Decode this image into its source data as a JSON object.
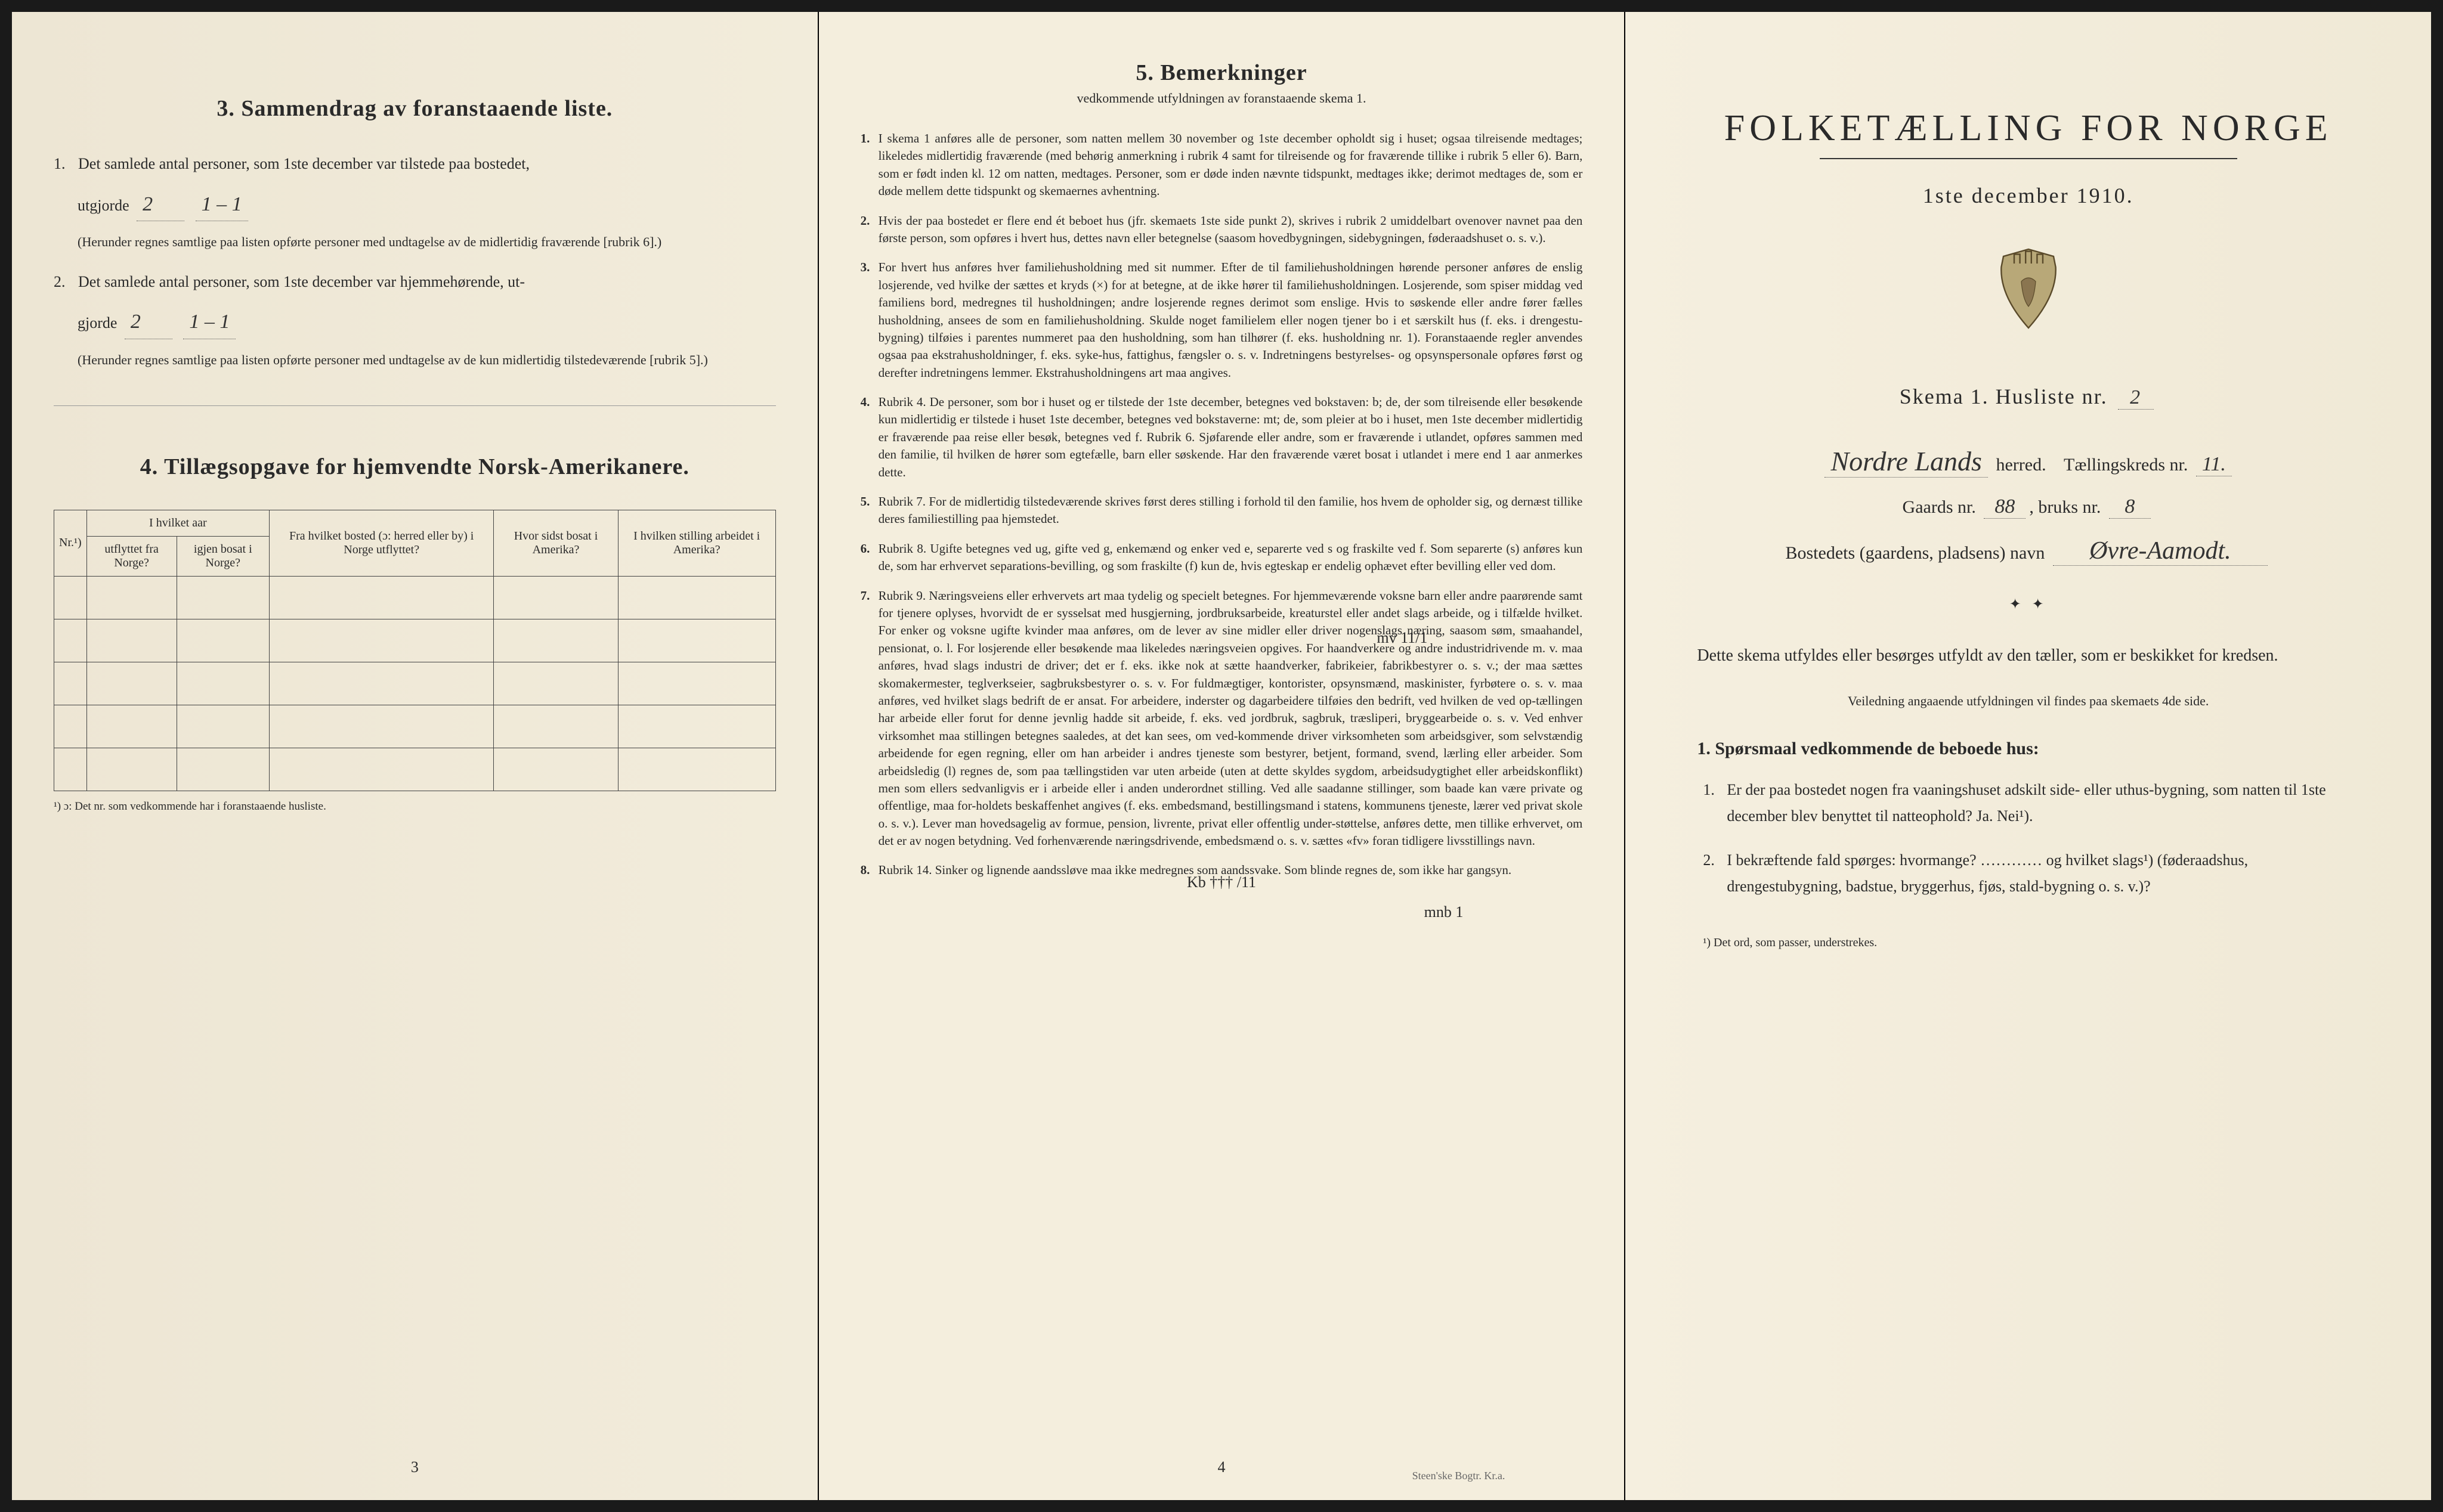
{
  "page1": {
    "section3_title": "3.  Sammendrag av foranstaaende liste.",
    "item1_text": "Det samlede antal personer, som 1ste december var tilstede paa bostedet,",
    "item1_label": "utgjorde",
    "item1_value1": "2",
    "item1_value2": "1 – 1",
    "item1_note": "(Herunder regnes samtlige paa listen opførte personer med undtagelse av de midlertidig fraværende [rubrik 6].)",
    "item2_text": "Det samlede antal personer, som 1ste december var hjemmehørende, ut-",
    "item2_label": "gjorde",
    "item2_value1": "2",
    "item2_value2": "1 – 1",
    "item2_note": "(Herunder regnes samtlige paa listen opførte personer med undtagelse av de kun midlertidig tilstedeværende [rubrik 5].)",
    "section4_title": "4.  Tillægsopgave for hjemvendte Norsk-Amerikanere.",
    "table": {
      "headers": {
        "nr": "Nr.¹)",
        "aar_group": "I hvilket aar",
        "utflyttet": "utflyttet fra Norge?",
        "igjen": "igjen bosat i Norge?",
        "fra_bosted": "Fra hvilket bosted (ɔ: herred eller by) i Norge utflyttet?",
        "hvor_sidst": "Hvor sidst bosat i Amerika?",
        "stilling": "I hvilken stilling arbeidet i Amerika?"
      },
      "note": "¹) ɔ: Det nr. som vedkommende har i foranstaaende husliste."
    },
    "page_number": "3"
  },
  "page2": {
    "title": "5.  Bemerkninger",
    "subtitle": "vedkommende utfyldningen av foranstaaende skema 1.",
    "remarks": [
      {
        "n": "1.",
        "t": "I skema 1 anføres alle de personer, som natten mellem 30 november og 1ste december opholdt sig i huset; ogsaa tilreisende medtages; likeledes midlertidig fraværende (med behørig anmerkning i rubrik 4 samt for tilreisende og for fraværende tillike i rubrik 5 eller 6). Barn, som er født inden kl. 12 om natten, medtages. Personer, som er døde inden nævnte tidspunkt, medtages ikke; derimot medtages de, som er døde mellem dette tidspunkt og skemaernes avhentning."
      },
      {
        "n": "2.",
        "t": "Hvis der paa bostedet er flere end ét beboet hus (jfr. skemaets 1ste side punkt 2), skrives i rubrik 2 umiddelbart ovenover navnet paa den første person, som opføres i hvert hus, dettes navn eller betegnelse (saasom hovedbygningen, sidebygningen, føderaadshuset o. s. v.)."
      },
      {
        "n": "3.",
        "t": "For hvert hus anføres hver familiehusholdning med sit nummer. Efter de til familiehusholdningen hørende personer anføres de enslig losjerende, ved hvilke der sættes et kryds (×) for at betegne, at de ikke hører til familiehusholdningen. Losjerende, som spiser middag ved familiens bord, medregnes til husholdningen; andre losjerende regnes derimot som enslige. Hvis to søskende eller andre fører fælles husholdning, ansees de som en familiehusholdning. Skulde noget familielem eller nogen tjener bo i et særskilt hus (f. eks. i drengestu-bygning) tilføies i parentes nummeret paa den husholdning, som han tilhører (f. eks. husholdning nr. 1).  Foranstaaende regler anvendes ogsaa paa ekstrahusholdninger, f. eks. syke-hus, fattighus, fængsler o. s. v. Indretningens bestyrelses- og opsynspersonale opføres først og derefter indretningens lemmer. Ekstrahusholdningens art maa angives."
      },
      {
        "n": "4.",
        "t": "Rubrik 4. De personer, som bor i huset og er tilstede der 1ste december, betegnes ved bokstaven: b; de, der som tilreisende eller besøkende kun midlertidig er tilstede i huset 1ste december, betegnes ved bokstaverne: mt; de, som pleier at bo i huset, men 1ste december midlertidig er fraværende paa reise eller besøk, betegnes ved f.  Rubrik 6. Sjøfarende eller andre, som er fraværende i utlandet, opføres sammen med den familie, til hvilken de hører som egtefælle, barn eller søskende. Har den fraværende været bosat i utlandet i mere end 1 aar anmerkes dette."
      },
      {
        "n": "5.",
        "t": "Rubrik 7. For de midlertidig tilstedeværende skrives først deres stilling i forhold til den familie, hos hvem de opholder sig, og dernæst tillike deres familiestilling paa hjemstedet."
      },
      {
        "n": "6.",
        "t": "Rubrik 8. Ugifte betegnes ved ug, gifte ved g, enkemænd og enker ved e, separerte ved s og fraskilte ved f. Som separerte (s) anføres kun de, som har erhvervet separations-bevilling, og som fraskilte (f) kun de, hvis egteskap er endelig ophævet efter bevilling eller ved dom."
      },
      {
        "n": "7.",
        "t": "Rubrik 9. Næringsveiens eller erhvervets art maa tydelig og specielt betegnes. For hjemmeværende voksne barn eller andre paarørende samt for tjenere oplyses, hvorvidt de er sysselsat med husgjerning, jordbruksarbeide, kreaturstel eller andet slags arbeide, og i tilfælde hvilket. For enker og voksne ugifte kvinder maa anføres, om de lever av sine midler eller driver nogenslags næring, saasom søm, smaahandel, pensionat, o. l. For losjerende eller besøkende maa likeledes næringsveien opgives. For haandverkere og andre industridrivende m. v. maa anføres, hvad slags industri de driver; det er f. eks. ikke nok at sætte haandverker, fabrikeier, fabrikbestyrer o. s. v.; der maa sættes skomakermester, teglverkseier, sagbruksbestyrer o. s. v. For fuldmægtiger, kontorister, opsynsmænd, maskinister, fyrbøtere o. s. v. maa anføres, ved hvilket slags bedrift de er ansat. For arbeidere, inderster og dagarbeidere tilføies den bedrift, ved hvilken de ved op-tællingen har arbeide eller forut for denne jevnlig hadde sit arbeide, f. eks. ved jordbruk, sagbruk, træsliperi, bryggearbeide o. s. v. Ved enhver virksomhet maa stillingen betegnes saaledes, at det kan sees, om ved-kommende driver virksomheten som arbeidsgiver, som selvstændig arbeidende for egen regning, eller om han arbeider i andres tjeneste som bestyrer, betjent, formand, svend, lærling eller arbeider. Som arbeidsledig (l) regnes de, som paa tællingstiden var uten arbeide (uten at dette skyldes sygdom, arbeidsudygtighet eller arbeidskonflikt) men som ellers sedvanligvis er i arbeide eller i anden underordnet stilling. Ved alle saadanne stillinger, som baade kan være private og offentlige, maa for-holdets beskaffenhet angives (f. eks. embedsmand, bestillingsmand i statens, kommunens tjeneste, lærer ved privat skole o. s. v.). Lever man hovedsagelig av formue, pension, livrente, privat eller offentlig under-støttelse, anføres dette, men tillike erhvervet, om det er av nogen betydning. Ved forhenværende næringsdrivende, embedsmænd o. s. v. sættes «fv» foran tidligere livsstillings navn."
      },
      {
        "n": "8.",
        "t": "Rubrik 14. Sinker og lignende aandssløve maa ikke medregnes som aandssvake. Som blinde regnes de, som ikke har gangsyn."
      }
    ],
    "handmark1": "mv 11/1",
    "handmark2": "Kb ††† /11",
    "handmark3": "mnb 1",
    "page_number": "4",
    "imprint": "Steen'ske Bogtr. Kr.a."
  },
  "page3": {
    "main_title": "FOLKETÆLLING FOR NORGE",
    "date": "1ste december 1910.",
    "schema_label": "Skema 1.  Husliste nr.",
    "schema_nr": "2",
    "herred_value": "Nordre Lands",
    "herred_label": "herred.",
    "kreds_label": "Tællingskreds nr.",
    "kreds_value": "11.",
    "gaards_label": "Gaards nr.",
    "gaards_value": "88",
    "bruks_label": "bruks nr.",
    "bruks_value": "8",
    "bosted_label": "Bostedets (gaardens, pladsens) navn",
    "bosted_value": "Øvre-Aamodt.",
    "body_text": "Dette skema utfyldes eller besørges utfyldt av den tæller, som er beskikket for kredsen.",
    "small_text": "Veiledning angaaende utfyldningen vil findes paa skemaets 4de side.",
    "q_heading": "1. Spørsmaal vedkommende de beboede hus:",
    "q1": "Er der paa bostedet nogen fra vaaningshuset adskilt side- eller uthus-bygning, som natten til 1ste december blev benyttet til natteophold?  Ja.  Nei¹).",
    "q2": "I bekræftende fald spørges: hvormange?  …………  og hvilket slags¹) (føderaadshus, drengestubygning, badstue, bryggerhus, fjøs, stald-bygning o. s. v.)?",
    "footnote": "¹) Det ord, som passer, understrekes."
  }
}
